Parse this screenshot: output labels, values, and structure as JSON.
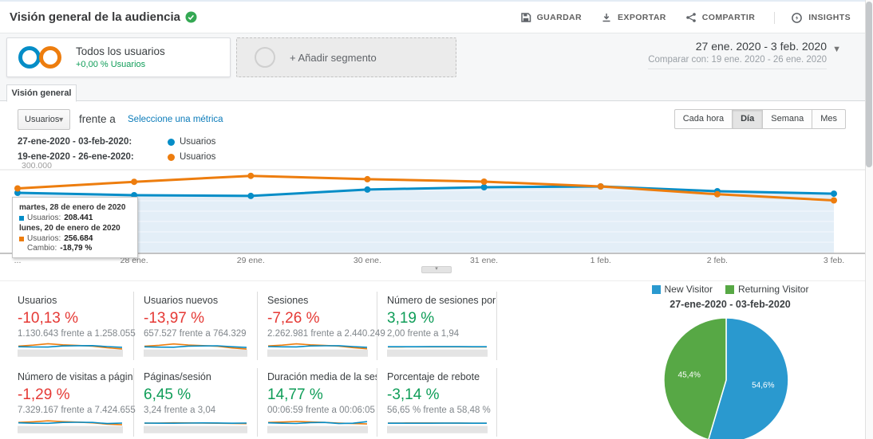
{
  "colors": {
    "current_blue": "#058dc7",
    "previous_orange": "#ed7d0e",
    "positive_green": "#0f9d58",
    "negative_red": "#e53935",
    "pie_blue": "#2a99cf",
    "pie_green": "#57a845",
    "area_fill": "#e3eef7"
  },
  "header": {
    "title": "Visión general de la audiencia",
    "actions": [
      {
        "label": "GUARDAR",
        "icon": "save-icon"
      },
      {
        "label": "EXPORTAR",
        "icon": "export-icon"
      },
      {
        "label": "COMPARTIR",
        "icon": "share-icon"
      },
      {
        "label": "INSIGHTS",
        "icon": "insights-icon"
      }
    ]
  },
  "segments": {
    "all_users_title": "Todos los usuarios",
    "all_users_subtitle": "+0,00 % Usuarios",
    "add_segment_label": "+ Añadir segmento",
    "date_range": "27 ene. 2020 - 3 feb. 2020",
    "compare_range": "Comparar con: 19 ene. 2020 - 26 ene. 2020"
  },
  "tabs": {
    "overview": "Visión general"
  },
  "controls": {
    "metric_select_value": "Usuarios",
    "versus_label": "frente a",
    "select_metric_link": "Seleccione una métrica",
    "granularity": [
      "Cada hora",
      "Día",
      "Semana",
      "Mes"
    ],
    "granularity_active": "Día"
  },
  "legend": [
    {
      "range": "27-ene-2020 - 03-feb-2020:",
      "metric": "Usuarios",
      "color": "#058dc7"
    },
    {
      "range": "19-ene-2020 - 26-ene-2020:",
      "metric": "Usuarios",
      "color": "#ed7d0e"
    }
  ],
  "tooltip": {
    "current_date": "martes, 28 de enero de 2020",
    "current_label": "Usuarios:",
    "current_value": "208.441",
    "previous_date": "lunes, 20 de enero de 2020",
    "previous_label": "Usuarios:",
    "previous_value": "256.684",
    "change_label": "Cambio:",
    "change_value": "-18,79 %"
  },
  "chart_data": [
    {
      "type": "line",
      "title": "Usuarios",
      "x_axis_labels": [
        "...",
        "28 ene.",
        "29 ene.",
        "30 ene.",
        "31 ene.",
        "1 feb.",
        "2 feb.",
        "3 feb."
      ],
      "ylim": [
        0,
        300000
      ],
      "y_gridline_label": "300.000",
      "grid": true,
      "area_fill_series": "current",
      "legend_position": "top-left",
      "series": [
        {
          "name": "27-ene-2020 - 03-feb-2020 Usuarios",
          "color": "#058dc7",
          "values": [
            217000,
            208441,
            206000,
            229000,
            237000,
            240000,
            223000,
            214000
          ]
        },
        {
          "name": "19-ene-2020 - 26-ene-2020 Usuarios",
          "color": "#ed7d0e",
          "values": [
            233000,
            256684,
            278000,
            266000,
            257000,
            240000,
            212000,
            190000
          ]
        }
      ]
    },
    {
      "type": "pie",
      "title": "27-ene-2020 - 03-feb-2020",
      "labels": [
        "New Visitor",
        "Returning Visitor"
      ],
      "values": [
        54.6,
        45.4
      ],
      "display_labels": [
        "54,6%",
        "45,4%"
      ],
      "colors": [
        "#2a99cf",
        "#57a845"
      ],
      "legend_position": "top"
    }
  ],
  "metrics": {
    "rows": [
      [
        {
          "label": "Usuarios",
          "delta": "-10,13 %",
          "delta_color": "#e53935",
          "comparison": "1.130.643 frente a 1.258.055",
          "spark": {
            "current": [
              0.5,
              0.46,
              0.45,
              0.6,
              0.63,
              0.64,
              0.52,
              0.42
            ],
            "previous": [
              0.58,
              0.7,
              0.88,
              0.74,
              0.66,
              0.58,
              0.36,
              0.22
            ]
          }
        },
        {
          "label": "Usuarios nuevos",
          "delta": "-13,97 %",
          "delta_color": "#e53935",
          "comparison": "657.527 frente a 764.329",
          "spark": {
            "current": [
              0.48,
              0.44,
              0.43,
              0.58,
              0.6,
              0.62,
              0.5,
              0.4
            ],
            "previous": [
              0.56,
              0.68,
              0.85,
              0.72,
              0.64,
              0.56,
              0.34,
              0.2
            ]
          }
        },
        {
          "label": "Sesiones",
          "delta": "-7,26 %",
          "delta_color": "#e53935",
          "comparison": "2.262.981 frente a 2.440.249",
          "spark": {
            "current": [
              0.52,
              0.48,
              0.47,
              0.6,
              0.62,
              0.63,
              0.52,
              0.42
            ],
            "previous": [
              0.6,
              0.7,
              0.86,
              0.74,
              0.66,
              0.58,
              0.38,
              0.24
            ]
          }
        },
        {
          "label": "Número de sesiones por usuario",
          "delta": "3,19 %",
          "delta_color": "#0f9d58",
          "comparison": "2,00 frente a 1,94",
          "spark": {
            "current": [
              0.5,
              0.5,
              0.5,
              0.51,
              0.51,
              0.51,
              0.5,
              0.5
            ],
            "previous": [
              0.47,
              0.47,
              0.48,
              0.48,
              0.48,
              0.48,
              0.47,
              0.47
            ]
          }
        }
      ],
      [
        {
          "label": "Número de visitas a páginas",
          "delta": "-1,29 %",
          "delta_color": "#e53935",
          "comparison": "7.329.167 frente a 7.424.655",
          "spark": {
            "current": [
              0.55,
              0.5,
              0.48,
              0.6,
              0.62,
              0.6,
              0.45,
              0.52
            ],
            "previous": [
              0.6,
              0.68,
              0.8,
              0.7,
              0.64,
              0.55,
              0.38,
              0.3
            ]
          }
        },
        {
          "label": "Páginas/sesión",
          "delta": "6,45 %",
          "delta_color": "#0f9d58",
          "comparison": "3,24 frente a 3,04",
          "spark": {
            "current": [
              0.52,
              0.5,
              0.49,
              0.52,
              0.54,
              0.53,
              0.5,
              0.52
            ],
            "previous": [
              0.5,
              0.52,
              0.55,
              0.54,
              0.52,
              0.5,
              0.46,
              0.44
            ]
          }
        },
        {
          "label": "Duración media de la sesión",
          "delta": "14,77 %",
          "delta_color": "#0f9d58",
          "comparison": "00:06:59 frente a 00:06:05",
          "spark": {
            "current": [
              0.55,
              0.5,
              0.46,
              0.58,
              0.6,
              0.45,
              0.5,
              0.7
            ],
            "previous": [
              0.6,
              0.65,
              0.72,
              0.66,
              0.6,
              0.52,
              0.45,
              0.4
            ]
          }
        },
        {
          "label": "Porcentaje de rebote",
          "delta": "-3,14 %",
          "delta_color": "#0f9d58",
          "comparison": "56,65 % frente a 58,48 %",
          "spark": {
            "current": [
              0.5,
              0.49,
              0.49,
              0.5,
              0.51,
              0.51,
              0.5,
              0.5
            ],
            "previous": [
              0.52,
              0.52,
              0.53,
              0.53,
              0.52,
              0.51,
              0.5,
              0.5
            ]
          }
        }
      ]
    ]
  },
  "pie_section": {
    "legend": [
      {
        "label": "New Visitor",
        "color": "#2a99cf"
      },
      {
        "label": "Returning Visitor",
        "color": "#57a845"
      }
    ],
    "title": "27-ene-2020 - 03-feb-2020"
  }
}
